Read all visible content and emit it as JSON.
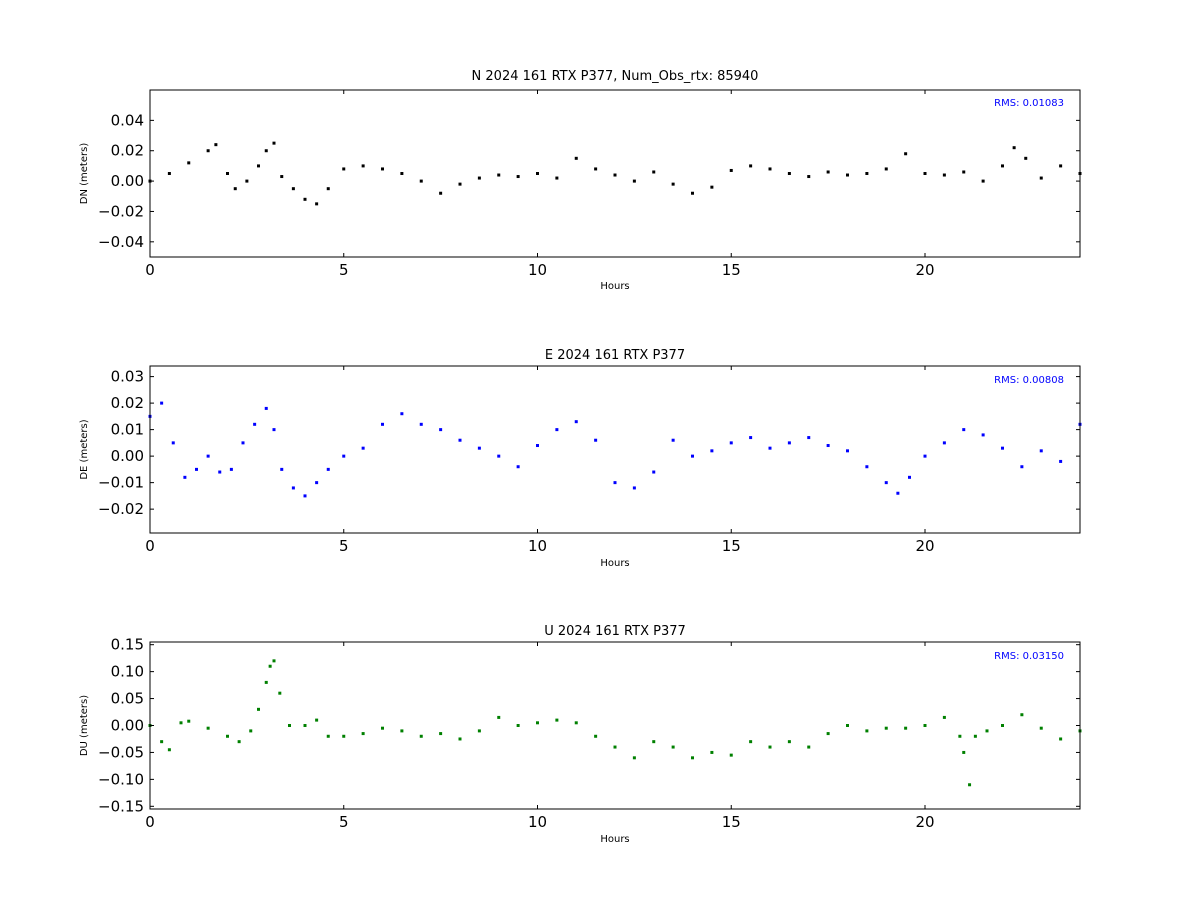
{
  "chart_data": [
    {
      "type": "scatter",
      "title": "N 2024 161 RTX  P377, Num_Obs_rtx: 85940",
      "xlabel": "Hours",
      "ylabel": "DN (meters)",
      "xlim": [
        0,
        24
      ],
      "ylim": [
        -0.05,
        0.06
      ],
      "xticks": [
        0,
        5,
        10,
        15,
        20
      ],
      "xtick_labels": [
        "0",
        "5",
        "10",
        "15",
        "20"
      ],
      "yticks": [
        -0.04,
        -0.02,
        0.0,
        0.02,
        0.04
      ],
      "ytick_labels": [
        "−0.04",
        "−0.02",
        "0.00",
        "0.02",
        "0.04"
      ],
      "color": "#000000",
      "annotation": "RMS:  0.01083",
      "annotation_color": "#0000ff",
      "series": [
        {
          "x": [
            0.0,
            0.5,
            1.0,
            1.5,
            1.7,
            2.0,
            2.2,
            2.5,
            2.8,
            3.0,
            3.2,
            3.4,
            3.7,
            4.0,
            4.3,
            4.6,
            5.0,
            5.5,
            6.0,
            6.5,
            7.0,
            7.5,
            8.0,
            8.5,
            9.0,
            9.5,
            10.0,
            10.5,
            11.0,
            11.5,
            12.0,
            12.5,
            13.0,
            13.5,
            14.0,
            14.5,
            15.0,
            15.5,
            16.0,
            16.5,
            17.0,
            17.5,
            18.0,
            18.5,
            19.0,
            19.5,
            20.0,
            20.5,
            21.0,
            21.5,
            22.0,
            22.3,
            22.6,
            23.0,
            23.5,
            24.0
          ],
          "y": [
            0.0,
            0.005,
            0.012,
            0.02,
            0.024,
            0.005,
            -0.005,
            0.0,
            0.01,
            0.02,
            0.025,
            0.003,
            -0.005,
            -0.012,
            -0.015,
            -0.005,
            0.008,
            0.01,
            0.008,
            0.005,
            0.0,
            -0.008,
            -0.002,
            0.002,
            0.004,
            0.003,
            0.005,
            0.002,
            0.015,
            0.008,
            0.004,
            0.0,
            0.006,
            -0.002,
            -0.008,
            -0.004,
            0.007,
            0.01,
            0.008,
            0.005,
            0.003,
            0.006,
            0.004,
            0.005,
            0.008,
            0.018,
            0.005,
            0.004,
            0.006,
            0.0,
            0.01,
            0.022,
            0.015,
            0.002,
            0.01,
            0.005
          ]
        }
      ]
    },
    {
      "type": "scatter",
      "title": "E 2024 161 RTX  P377",
      "xlabel": "Hours",
      "ylabel": "DE (meters)",
      "xlim": [
        0,
        24
      ],
      "ylim": [
        -0.029,
        0.034
      ],
      "xticks": [
        0,
        5,
        10,
        15,
        20
      ],
      "xtick_labels": [
        "0",
        "5",
        "10",
        "15",
        "20"
      ],
      "yticks": [
        -0.02,
        -0.01,
        0.0,
        0.01,
        0.02,
        0.03
      ],
      "ytick_labels": [
        "−0.02",
        "−0.01",
        "0.00",
        "0.01",
        "0.02",
        "0.03"
      ],
      "color": "#0000ff",
      "annotation": "RMS:  0.00808",
      "annotation_color": "#0000ff",
      "series": [
        {
          "x": [
            0.0,
            0.3,
            0.6,
            0.9,
            1.2,
            1.5,
            1.8,
            2.1,
            2.4,
            2.7,
            3.0,
            3.2,
            3.4,
            3.7,
            4.0,
            4.3,
            4.6,
            5.0,
            5.5,
            6.0,
            6.5,
            7.0,
            7.5,
            8.0,
            8.5,
            9.0,
            9.5,
            10.0,
            10.5,
            11.0,
            11.5,
            12.0,
            12.5,
            13.0,
            13.5,
            14.0,
            14.5,
            15.0,
            15.5,
            16.0,
            16.5,
            17.0,
            17.5,
            18.0,
            18.5,
            19.0,
            19.3,
            19.6,
            20.0,
            20.5,
            21.0,
            21.5,
            22.0,
            22.5,
            23.0,
            23.5,
            24.0
          ],
          "y": [
            0.015,
            0.02,
            0.005,
            -0.008,
            -0.005,
            0.0,
            -0.006,
            -0.005,
            0.005,
            0.012,
            0.018,
            0.01,
            -0.005,
            -0.012,
            -0.015,
            -0.01,
            -0.005,
            0.0,
            0.003,
            0.012,
            0.016,
            0.012,
            0.01,
            0.006,
            0.003,
            0.0,
            -0.004,
            0.004,
            0.01,
            0.013,
            0.006,
            -0.01,
            -0.012,
            -0.006,
            0.006,
            0.0,
            0.002,
            0.005,
            0.007,
            0.003,
            0.005,
            0.007,
            0.004,
            0.002,
            -0.004,
            -0.01,
            -0.014,
            -0.008,
            0.0,
            0.005,
            0.01,
            0.008,
            0.003,
            -0.004,
            0.002,
            -0.002,
            0.012
          ]
        }
      ]
    },
    {
      "type": "scatter",
      "title": "U 2024 161 RTX  P377",
      "xlabel": "Hours",
      "ylabel": "DU (meters)",
      "xlim": [
        0,
        24
      ],
      "ylim": [
        -0.155,
        0.155
      ],
      "xticks": [
        0,
        5,
        10,
        15,
        20
      ],
      "xtick_labels": [
        "0",
        "5",
        "10",
        "15",
        "20"
      ],
      "yticks": [
        -0.15,
        -0.1,
        -0.05,
        0.0,
        0.05,
        0.1,
        0.15
      ],
      "ytick_labels": [
        "−0.15",
        "−0.10",
        "−0.05",
        "0.00",
        "0.05",
        "0.10",
        "0.15"
      ],
      "color": "#008000",
      "annotation": "RMS:  0.03150",
      "annotation_color": "#0000ff",
      "series": [
        {
          "x": [
            0.0,
            0.3,
            0.5,
            0.8,
            1.0,
            1.5,
            2.0,
            2.3,
            2.6,
            2.8,
            3.0,
            3.1,
            3.2,
            3.35,
            3.6,
            4.0,
            4.3,
            4.6,
            5.0,
            5.5,
            6.0,
            6.5,
            7.0,
            7.5,
            8.0,
            8.5,
            9.0,
            9.5,
            10.0,
            10.5,
            11.0,
            11.5,
            12.0,
            12.5,
            13.0,
            13.5,
            14.0,
            14.5,
            15.0,
            15.5,
            16.0,
            16.5,
            17.0,
            17.5,
            18.0,
            18.5,
            19.0,
            19.5,
            20.0,
            20.5,
            20.9,
            21.0,
            21.15,
            21.3,
            21.6,
            22.0,
            22.5,
            23.0,
            23.5,
            24.0
          ],
          "y": [
            0.0,
            -0.03,
            -0.045,
            0.005,
            0.008,
            -0.005,
            -0.02,
            -0.03,
            -0.01,
            0.03,
            0.08,
            0.11,
            0.12,
            0.06,
            0.0,
            0.0,
            0.01,
            -0.02,
            -0.02,
            -0.015,
            -0.005,
            -0.01,
            -0.02,
            -0.015,
            -0.025,
            -0.01,
            0.015,
            0.0,
            0.005,
            0.01,
            0.005,
            -0.02,
            -0.04,
            -0.06,
            -0.03,
            -0.04,
            -0.06,
            -0.05,
            -0.055,
            -0.03,
            -0.04,
            -0.03,
            -0.04,
            -0.015,
            0.0,
            -0.01,
            -0.005,
            -0.005,
            0.0,
            0.015,
            -0.02,
            -0.05,
            -0.11,
            -0.02,
            -0.01,
            0.0,
            0.02,
            -0.005,
            -0.025,
            -0.01
          ]
        }
      ]
    }
  ]
}
